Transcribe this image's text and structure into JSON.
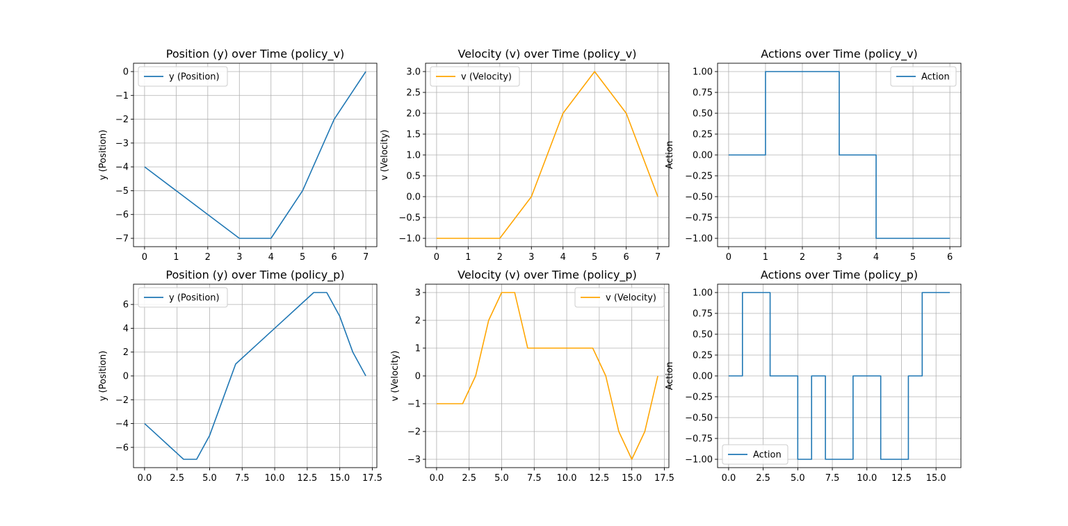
{
  "chart_data": [
    {
      "type": "line",
      "title": "Position (y) over Time (policy_v)",
      "xlabel": "",
      "ylabel": "y (Position)",
      "xlim": [
        -0.35,
        7.35
      ],
      "ylim": [
        -7.35,
        0.35
      ],
      "xticks": [
        0,
        1,
        2,
        3,
        4,
        5,
        6,
        7
      ],
      "yticks": [
        -7,
        -6,
        -5,
        -4,
        -3,
        -2,
        -1,
        0
      ],
      "grid": true,
      "legend_position": "upper left",
      "series": [
        {
          "name": "y (Position)",
          "color": "#1f77b4",
          "step": false,
          "x": [
            0,
            1,
            2,
            3,
            4,
            5,
            6,
            7
          ],
          "y": [
            -4,
            -5,
            -6,
            -7,
            -7,
            -5,
            -2,
            0
          ]
        }
      ]
    },
    {
      "type": "line",
      "title": "Velocity (v) over Time (policy_v)",
      "xlabel": "",
      "ylabel": "v (Velocity)",
      "xlim": [
        -0.35,
        7.35
      ],
      "ylim": [
        -1.2,
        3.2
      ],
      "xticks": [
        0,
        1,
        2,
        3,
        4,
        5,
        6,
        7
      ],
      "yticks": [
        -1.0,
        -0.5,
        0.0,
        0.5,
        1.0,
        1.5,
        2.0,
        2.5,
        3.0
      ],
      "ytick_decimals": 1,
      "grid": true,
      "legend_position": "upper left",
      "series": [
        {
          "name": "v (Velocity)",
          "color": "#ffa500",
          "step": false,
          "x": [
            0,
            1,
            2,
            3,
            4,
            5,
            6,
            7
          ],
          "y": [
            -1,
            -1,
            -1,
            0,
            2,
            3,
            2,
            0
          ]
        }
      ]
    },
    {
      "type": "line",
      "title": "Actions over Time (policy_v)",
      "xlabel": "",
      "ylabel": "Action",
      "xlim": [
        -0.3,
        6.3
      ],
      "ylim": [
        -1.1,
        1.1
      ],
      "xticks": [
        0,
        1,
        2,
        3,
        4,
        5,
        6
      ],
      "yticks": [
        -1.0,
        -0.75,
        -0.5,
        -0.25,
        0.0,
        0.25,
        0.5,
        0.75,
        1.0
      ],
      "ytick_decimals": 2,
      "grid": true,
      "legend_position": "upper right",
      "series": [
        {
          "name": "Action",
          "color": "#1f77b4",
          "step": true,
          "x": [
            0,
            1,
            2,
            3,
            4,
            5,
            6
          ],
          "y": [
            0,
            0,
            1,
            1,
            0,
            -1,
            -1
          ]
        }
      ]
    },
    {
      "type": "line",
      "title": "Position (y) over Time (policy_p)",
      "xlabel": "",
      "ylabel": "y (Position)",
      "xlim": [
        -0.85,
        17.85
      ],
      "ylim": [
        -7.7,
        7.7
      ],
      "xticks": [
        0.0,
        2.5,
        5.0,
        7.5,
        10.0,
        12.5,
        15.0,
        17.5
      ],
      "xtick_decimals": 1,
      "yticks": [
        -6,
        -4,
        -2,
        0,
        2,
        4,
        6
      ],
      "grid": true,
      "legend_position": "upper left",
      "series": [
        {
          "name": "y (Position)",
          "color": "#1f77b4",
          "step": false,
          "x": [
            0,
            1,
            2,
            3,
            4,
            5,
            6,
            7,
            8,
            9,
            10,
            11,
            12,
            13,
            14,
            15,
            16,
            17
          ],
          "y": [
            -4,
            -5,
            -6,
            -7,
            -7,
            -5,
            -2,
            1,
            2,
            3,
            4,
            5,
            6,
            7,
            7,
            5,
            2,
            0
          ]
        }
      ]
    },
    {
      "type": "line",
      "title": "Velocity (v) over Time (policy_p)",
      "xlabel": "",
      "ylabel": "v (Velocity)",
      "xlim": [
        -0.85,
        17.85
      ],
      "ylim": [
        -3.3,
        3.3
      ],
      "xticks": [
        0.0,
        2.5,
        5.0,
        7.5,
        10.0,
        12.5,
        15.0,
        17.5
      ],
      "xtick_decimals": 1,
      "yticks": [
        -3,
        -2,
        -1,
        0,
        1,
        2,
        3
      ],
      "grid": true,
      "legend_position": "upper right",
      "series": [
        {
          "name": "v (Velocity)",
          "color": "#ffa500",
          "step": false,
          "x": [
            0,
            1,
            2,
            3,
            4,
            5,
            6,
            7,
            8,
            9,
            10,
            11,
            12,
            13,
            14,
            15,
            16,
            17
          ],
          "y": [
            -1,
            -1,
            -1,
            0,
            2,
            3,
            3,
            1,
            1,
            1,
            1,
            1,
            1,
            0,
            -2,
            -3,
            -2,
            0
          ]
        }
      ]
    },
    {
      "type": "line",
      "title": "Actions over Time (policy_p)",
      "xlabel": "",
      "ylabel": "Action",
      "xlim": [
        -0.8,
        16.8
      ],
      "ylim": [
        -1.1,
        1.1
      ],
      "xticks": [
        0.0,
        2.5,
        5.0,
        7.5,
        10.0,
        12.5,
        15.0
      ],
      "xtick_decimals": 1,
      "yticks": [
        -1.0,
        -0.75,
        -0.5,
        -0.25,
        0.0,
        0.25,
        0.5,
        0.75,
        1.0
      ],
      "ytick_decimals": 2,
      "grid": true,
      "legend_position": "lower left",
      "series": [
        {
          "name": "Action",
          "color": "#1f77b4",
          "step": true,
          "x": [
            0,
            1,
            2,
            3,
            4,
            5,
            6,
            7,
            8,
            9,
            10,
            11,
            12,
            13,
            14,
            15,
            16
          ],
          "y": [
            0,
            0,
            1,
            1,
            0,
            0,
            -1,
            0,
            -1,
            -1,
            0,
            0,
            -1,
            -1,
            0,
            1,
            1
          ]
        }
      ]
    }
  ]
}
